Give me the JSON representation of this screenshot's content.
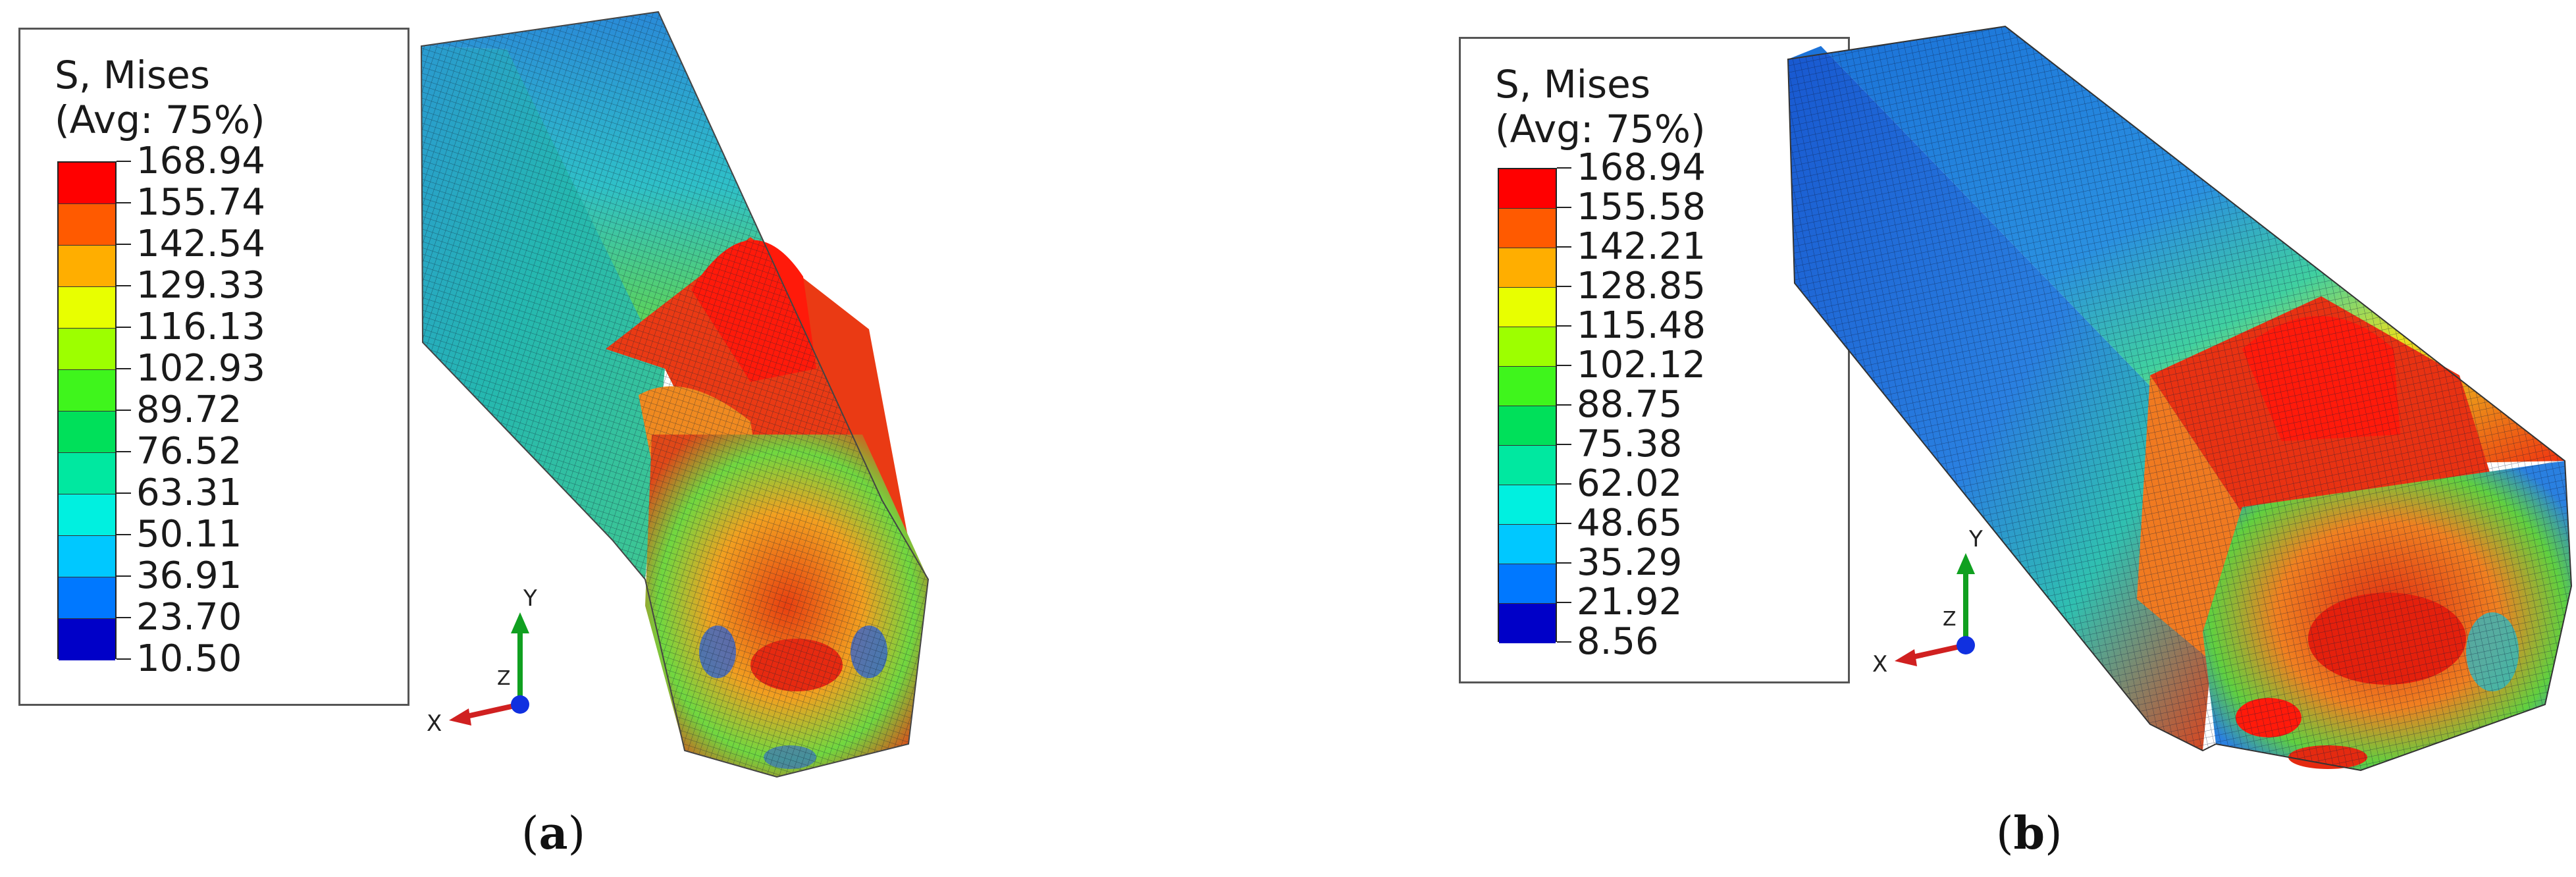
{
  "figure": {
    "panels": [
      {
        "id": "a",
        "caption": "a",
        "legend": {
          "title_line1": "S, Mises",
          "title_line2": "(Avg: 75%)",
          "values": [
            "168.94",
            "155.74",
            "142.54",
            "129.33",
            "116.13",
            "102.93",
            "89.72",
            "76.52",
            "63.31",
            "50.11",
            "36.91",
            "23.70",
            "10.50"
          ],
          "colors": [
            "#ff0000",
            "#ff5a00",
            "#ffae00",
            "#e8ff00",
            "#9dff00",
            "#3ff51c",
            "#00e05a",
            "#00e8a0",
            "#00f0e0",
            "#00c8ff",
            "#0078ff",
            "#0028e0",
            "#0000c8"
          ]
        },
        "triad": {
          "x": "X",
          "y": "Y",
          "z": "Z"
        }
      },
      {
        "id": "b",
        "caption": "b",
        "legend": {
          "title_line1": "S, Mises",
          "title_line2": "(Avg: 75%)",
          "values": [
            "168.94",
            "155.58",
            "142.21",
            "128.85",
            "115.48",
            "102.12",
            "88.75",
            "75.38",
            "62.02",
            "48.65",
            "35.29",
            "21.92",
            "8.56"
          ],
          "colors": [
            "#ff0000",
            "#ff5a00",
            "#ffae00",
            "#e8ff00",
            "#9dff00",
            "#3ff51c",
            "#00e05a",
            "#00e8a0",
            "#00f0e0",
            "#00c8ff",
            "#0078ff",
            "#0028e0",
            "#0000c8"
          ]
        },
        "triad": {
          "x": "X",
          "y": "Y",
          "z": "Z"
        }
      }
    ]
  }
}
